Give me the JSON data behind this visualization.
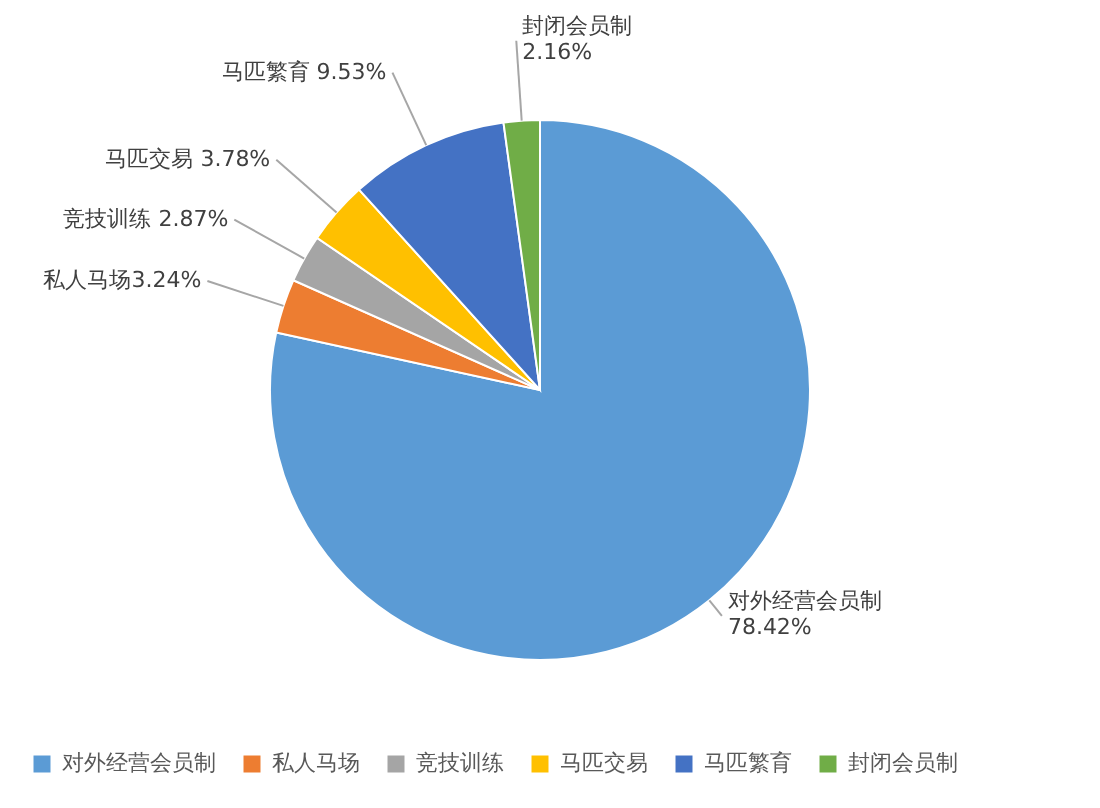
{
  "chart_data": {
    "type": "pie",
    "categories": [
      "对外经营会员制",
      "私人马场",
      "竞技训练",
      "马匹交易",
      "马匹繁育",
      "封闭会员制"
    ],
    "values": [
      78.42,
      3.24,
      2.87,
      3.78,
      9.53,
      2.16
    ],
    "colors": [
      "#5b9bd5",
      "#ed7d31",
      "#a5a5a5",
      "#ffc000",
      "#4472c4",
      "#70ad47"
    ],
    "value_labels": [
      "对外经营会员制\n78.42%",
      "私人马场3.24%",
      "竞技训练 2.87%",
      "马匹交易 3.78%",
      "马匹繁育 9.53%",
      "封闭会员制\n2.16%"
    ],
    "legend": "bottom"
  }
}
